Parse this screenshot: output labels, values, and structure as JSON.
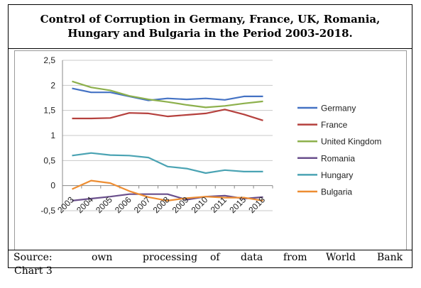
{
  "title": "Control of Corruption in Germany, France, UK, Romania, Hungary and Bulgaria in the Period 2003-2018.",
  "source_words": [
    "Source:",
    "own",
    "processing",
    "of",
    "data",
    "from",
    "World",
    "Bank"
  ],
  "caption": "Chart 3",
  "chart_data": {
    "type": "line",
    "title": "",
    "xlabel": "",
    "ylabel": "",
    "categories": [
      "2003",
      "2004",
      "2005",
      "2006",
      "2007",
      "2008",
      "2009",
      "2010",
      "2011",
      "2015",
      "2018"
    ],
    "ylim": [
      -0.5,
      2.5
    ],
    "yticks": [
      "-0,5",
      "0",
      "0,5",
      "1",
      "1,5",
      "2",
      "2,5"
    ],
    "grid": true,
    "legend": "right",
    "series": [
      {
        "name": "Germany",
        "color": "#4472c4",
        "values": [
          1.94,
          1.86,
          1.86,
          1.78,
          1.7,
          1.74,
          1.72,
          1.74,
          1.71,
          1.78,
          1.78
        ]
      },
      {
        "name": "France",
        "color": "#b5403d",
        "values": [
          1.34,
          1.34,
          1.35,
          1.45,
          1.44,
          1.38,
          1.41,
          1.44,
          1.52,
          1.42,
          1.3
        ]
      },
      {
        "name": "United Kingdom",
        "color": "#8db04c",
        "values": [
          2.08,
          1.96,
          1.9,
          1.79,
          1.72,
          1.67,
          1.61,
          1.56,
          1.59,
          1.64,
          1.68
        ]
      },
      {
        "name": "Romania",
        "color": "#6a4f8c",
        "values": [
          -0.3,
          -0.26,
          -0.22,
          -0.17,
          -0.17,
          -0.17,
          -0.28,
          -0.22,
          -0.2,
          -0.26,
          -0.23
        ]
      },
      {
        "name": "Hungary",
        "color": "#4aa3b3",
        "values": [
          0.6,
          0.65,
          0.61,
          0.6,
          0.56,
          0.38,
          0.34,
          0.25,
          0.31,
          0.28,
          0.28
        ]
      },
      {
        "name": "Bulgaria",
        "color": "#ed8d32",
        "values": [
          -0.07,
          0.1,
          0.05,
          -0.11,
          -0.23,
          -0.3,
          -0.25,
          -0.22,
          -0.24,
          -0.24,
          -0.3
        ]
      }
    ]
  }
}
